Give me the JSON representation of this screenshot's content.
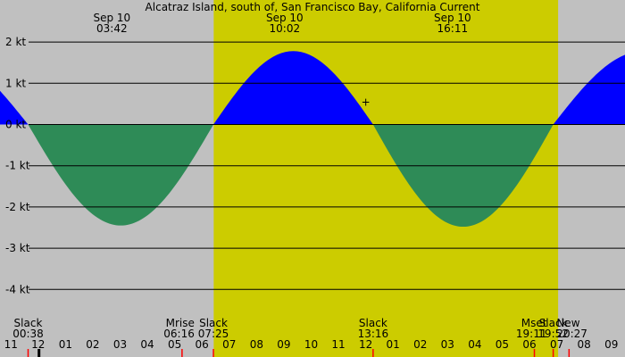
{
  "chart_data": {
    "type": "area",
    "title": "Alcatraz Island, south of, San Francisco Bay, California Current",
    "ylim": [
      -4.6,
      2.5
    ],
    "y_ticks": [
      {
        "value": 2,
        "label": "2 kt"
      },
      {
        "value": 1,
        "label": "1 kt"
      },
      {
        "value": 0,
        "label": "0 kt"
      },
      {
        "value": -1,
        "label": "-1 kt"
      },
      {
        "value": -2,
        "label": "-2 kt"
      },
      {
        "value": -3,
        "label": "-3 kt"
      },
      {
        "value": -4,
        "label": "-4 kt"
      }
    ],
    "x_hours_range": [
      -0.4,
      22.5
    ],
    "hour_labels": [
      "11",
      "12",
      "01",
      "02",
      "03",
      "04",
      "05",
      "06",
      "07",
      "08",
      "09",
      "10",
      "11",
      "12",
      "01",
      "02",
      "03",
      "04",
      "05",
      "06",
      "07",
      "08",
      "09"
    ],
    "daylight": {
      "start": 7.43,
      "end": 20.05
    },
    "current_points": [
      {
        "time": "Sep 10 00:38",
        "hour": 0.63,
        "value": 0
      },
      {
        "time": "Sep 10 03:42",
        "hour": 3.7,
        "value": -2.45,
        "date_label": "Sep 10",
        "time_label": "03:42"
      },
      {
        "time": "Sep 10 07:25",
        "hour": 7.42,
        "value": 0
      },
      {
        "time": "Sep 10 10:02",
        "hour": 10.03,
        "value": 1.78,
        "date_label": "Sep 10",
        "time_label": "10:02"
      },
      {
        "time": "Sep 10 13:16",
        "hour": 13.27,
        "value": 0
      },
      {
        "time": "Sep 10 16:11",
        "hour": 16.18,
        "value": -2.48,
        "date_label": "Sep 10",
        "time_label": "16:11"
      },
      {
        "time": "Sep 10 19:52",
        "hour": 19.87,
        "value": 0
      }
    ],
    "events": [
      {
        "label": "Slack",
        "time": "00:38",
        "hour": 0.63
      },
      {
        "label": "Mrise",
        "time": "06:16",
        "hour": 6.27
      },
      {
        "label": "Slack",
        "time": "07:25",
        "hour": 7.42
      },
      {
        "label": "Slack",
        "time": "13:16",
        "hour": 13.27
      },
      {
        "label": "Mset",
        "time": "19:11",
        "hour": 19.18
      },
      {
        "label": "Slack",
        "time": "19:52",
        "hour": 19.87
      },
      {
        "label": "New",
        "time": "20:27",
        "hour": 20.45
      }
    ],
    "colors": {
      "night": "#c0c0c0",
      "day": "#cccc00",
      "flood": "#0000ff",
      "ebb": "#2e8b57",
      "gridline": "#000000",
      "marker_current": "#000000",
      "marker_event": "#ff0000"
    }
  }
}
